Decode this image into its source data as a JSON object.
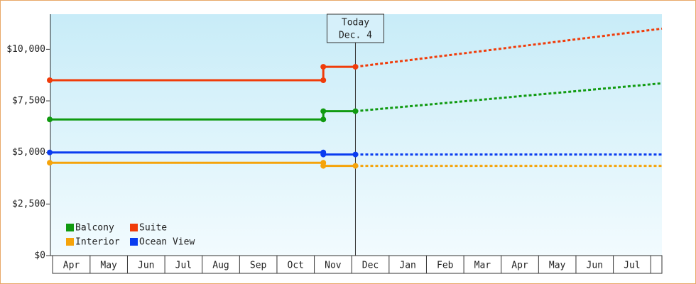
{
  "chart_data": {
    "type": "line",
    "x_axis": "months",
    "xlim": [
      -0.08,
      16.3
    ],
    "xticks": [
      {
        "value": 0.5,
        "label": "Apr"
      },
      {
        "value": 1.5,
        "label": "May"
      },
      {
        "value": 2.5,
        "label": "Jun"
      },
      {
        "value": 3.5,
        "label": "Jul"
      },
      {
        "value": 4.5,
        "label": "Aug"
      },
      {
        "value": 5.5,
        "label": "Sep"
      },
      {
        "value": 6.5,
        "label": "Oct"
      },
      {
        "value": 7.5,
        "label": "Nov"
      },
      {
        "value": 8.5,
        "label": "Dec"
      },
      {
        "value": 9.5,
        "label": "Jan"
      },
      {
        "value": 10.5,
        "label": "Feb"
      },
      {
        "value": 11.5,
        "label": "Mar"
      },
      {
        "value": 12.5,
        "label": "Apr"
      },
      {
        "value": 13.5,
        "label": "May"
      },
      {
        "value": 14.5,
        "label": "Jun"
      },
      {
        "value": 15.5,
        "label": "Jul"
      }
    ],
    "ylim": [
      0,
      11700
    ],
    "yticks": [
      {
        "value": 0,
        "label": "$0"
      },
      {
        "value": 2500,
        "label": "$2,500"
      },
      {
        "value": 5000,
        "label": "$5,000"
      },
      {
        "value": 7500,
        "label": "$7,500"
      },
      {
        "value": 10000,
        "label": "$10,000"
      }
    ],
    "grid": false,
    "legend": "bottom-left",
    "today": {
      "x": 8.1,
      "label": "Today",
      "date": "Dec. 4"
    },
    "series": [
      {
        "name": "Balcony",
        "color": "#109a10",
        "x": [
          -0.08,
          7.24,
          7.24,
          8.1,
          16.3
        ],
        "values": [
          6600,
          6600,
          7000,
          7000,
          8350
        ]
      },
      {
        "name": "Suite",
        "color": "#f03c0a",
        "x": [
          -0.08,
          7.24,
          7.24,
          8.1,
          16.3
        ],
        "values": [
          8500,
          8500,
          9150,
          9150,
          11000
        ]
      },
      {
        "name": "Interior",
        "color": "#f5a30a",
        "x": [
          -0.08,
          7.24,
          7.24,
          8.1,
          16.3
        ],
        "values": [
          4500,
          4500,
          4350,
          4350,
          4350
        ]
      },
      {
        "name": "Ocean View",
        "color": "#0a3cf0",
        "x": [
          -0.08,
          7.24,
          7.24,
          8.1,
          16.3
        ],
        "values": [
          5000,
          5000,
          4900,
          4900,
          4900
        ]
      }
    ]
  }
}
